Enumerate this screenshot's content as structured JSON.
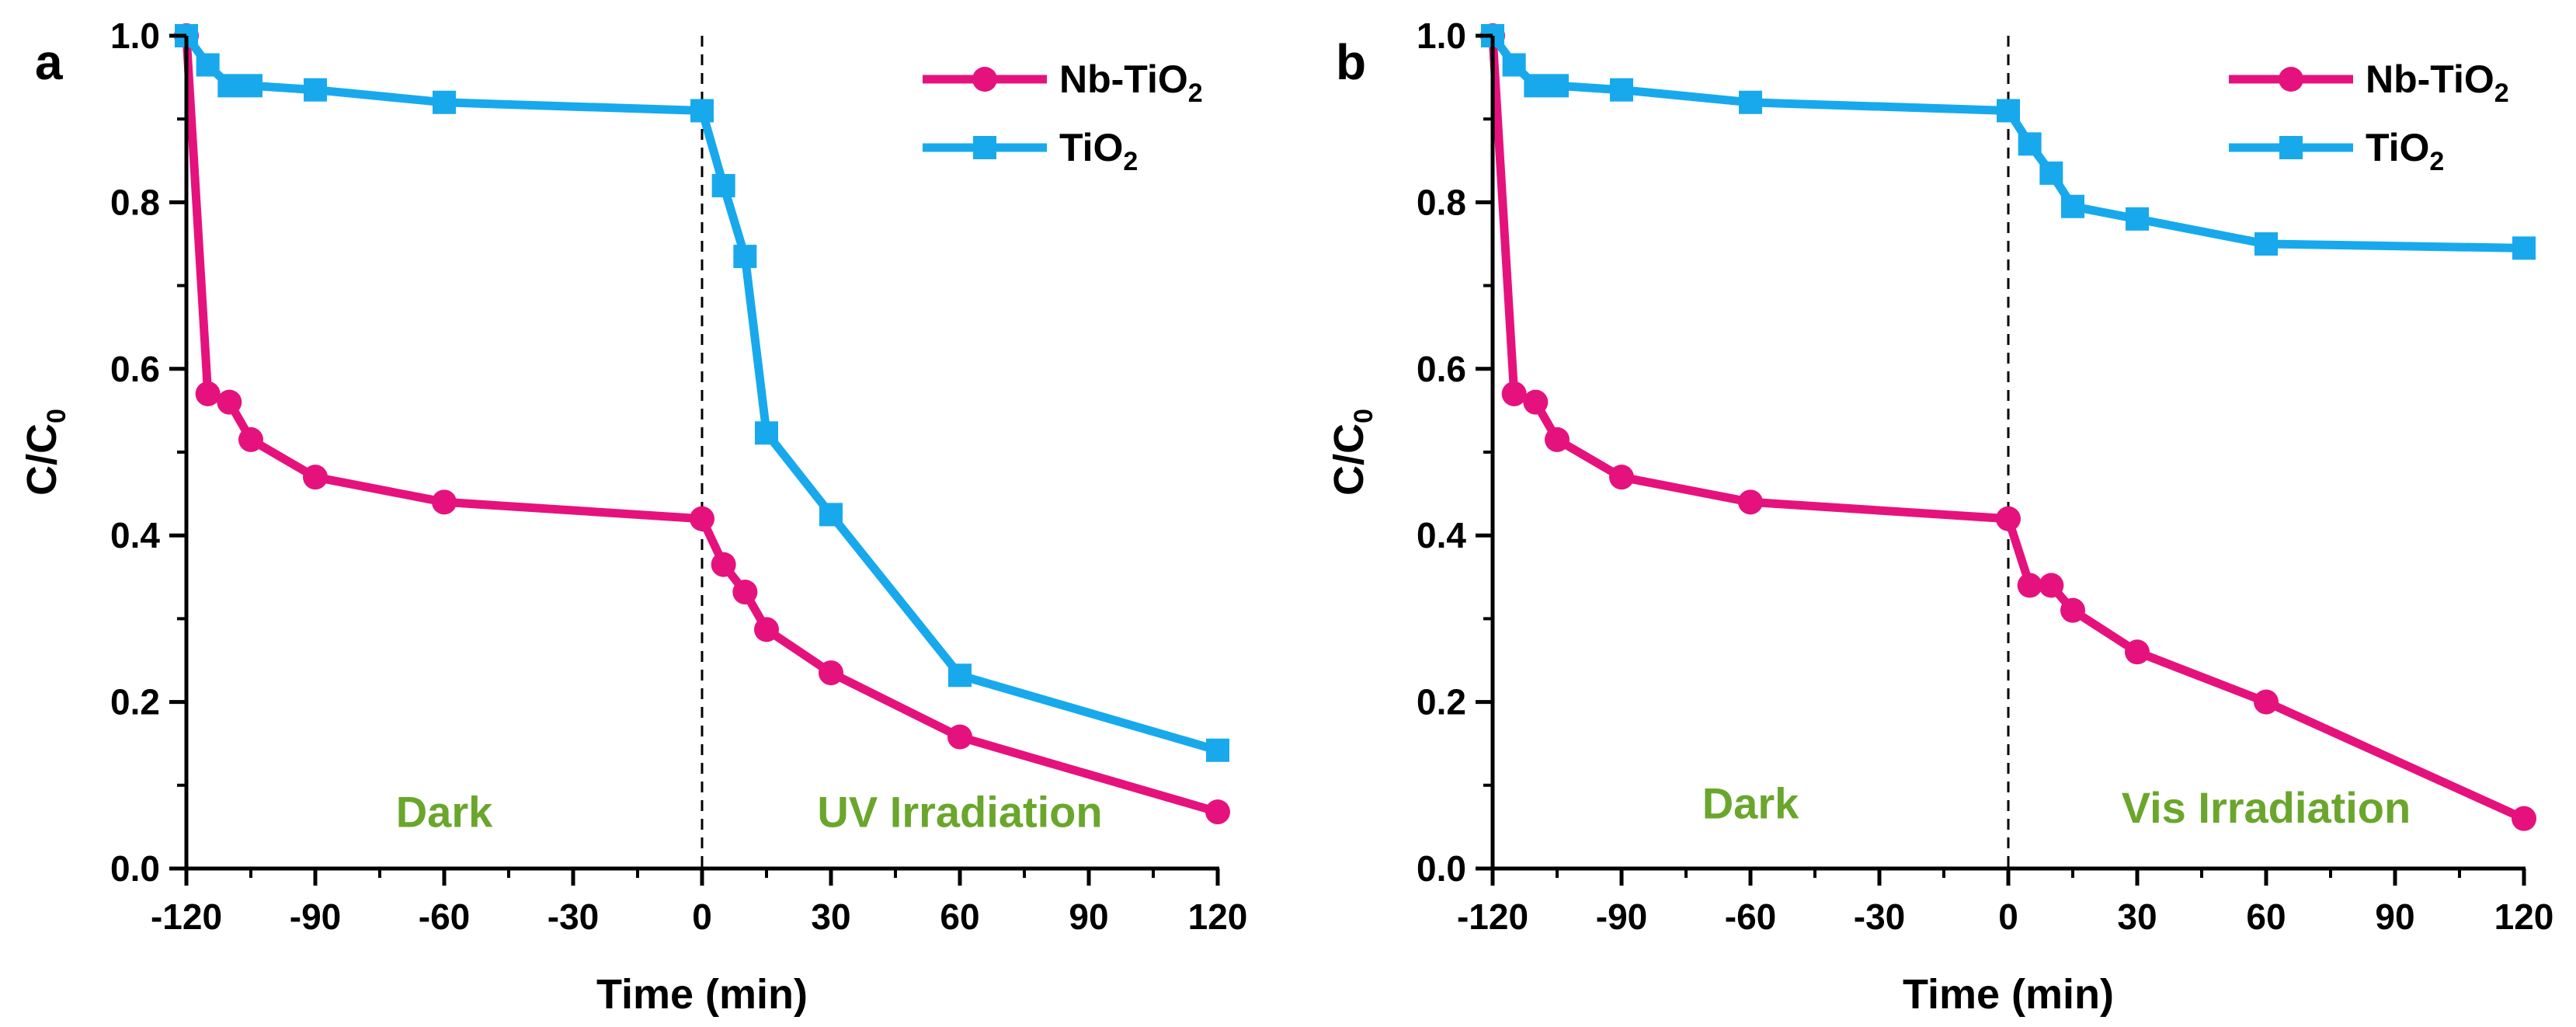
{
  "chart_data": [
    {
      "panel": "a",
      "type": "line",
      "xlabel": "Time (min)",
      "ylabel": "C/C0",
      "xlim": [
        -120,
        120
      ],
      "ylim": [
        0,
        1
      ],
      "xticks": [
        -120,
        -90,
        -60,
        -30,
        0,
        30,
        60,
        90,
        120
      ],
      "yticks": [
        0,
        0.2,
        0.4,
        0.6,
        0.8,
        1.0
      ],
      "xtick_labels": [
        "-120",
        "-90",
        "-60",
        "-30",
        "0",
        "30",
        "60",
        "90",
        "120"
      ],
      "ytick_labels": [
        "0.0",
        "0.2",
        "0.4",
        "0.6",
        "0.8",
        "1.0"
      ],
      "divider_x": 0,
      "regions": [
        {
          "label": "Dark",
          "x": -60,
          "y": 0.05
        },
        {
          "label": "UV Irradiation",
          "x": 60,
          "y": 0.05
        }
      ],
      "legend": "top-right",
      "series": [
        {
          "name": "Nb-TiO2",
          "color": "#e5127d",
          "marker": "circle",
          "x": [
            -120,
            -115,
            -110,
            -105,
            -90,
            -60,
            0,
            5,
            10,
            15,
            30,
            60,
            120
          ],
          "y": [
            1.0,
            0.57,
            0.56,
            0.515,
            0.47,
            0.44,
            0.42,
            0.365,
            0.332,
            0.287,
            0.235,
            0.158,
            0.068
          ]
        },
        {
          "name": "TiO2",
          "color": "#18a9ec",
          "marker": "square",
          "x": [
            -120,
            -115,
            -110,
            -105,
            -90,
            -60,
            0,
            5,
            10,
            15,
            30,
            60,
            120
          ],
          "y": [
            1.0,
            0.965,
            0.94,
            0.94,
            0.935,
            0.92,
            0.91,
            0.82,
            0.735,
            0.523,
            0.425,
            0.232,
            0.142
          ]
        }
      ]
    },
    {
      "panel": "b",
      "type": "line",
      "xlabel": "Time (min)",
      "ylabel": "C/C0",
      "xlim": [
        -120,
        120
      ],
      "ylim": [
        0,
        1
      ],
      "xticks": [
        -120,
        -90,
        -60,
        -30,
        0,
        30,
        60,
        90,
        120
      ],
      "yticks": [
        0,
        0.2,
        0.4,
        0.6,
        0.8,
        1.0
      ],
      "xtick_labels": [
        "-120",
        "-90",
        "-60",
        "-30",
        "0",
        "30",
        "60",
        "90",
        "120"
      ],
      "ytick_labels": [
        "0.0",
        "0.2",
        "0.4",
        "0.6",
        "0.8",
        "1.0"
      ],
      "divider_x": 0,
      "regions": [
        {
          "label": "Dark",
          "x": -60,
          "y": 0.06
        },
        {
          "label": "Vis Irradiation",
          "x": 60,
          "y": 0.055
        }
      ],
      "legend": "top-right",
      "series": [
        {
          "name": "Nb-TiO2",
          "color": "#e5127d",
          "marker": "circle",
          "x": [
            -120,
            -115,
            -110,
            -105,
            -90,
            -60,
            0,
            5,
            10,
            15,
            30,
            60,
            120
          ],
          "y": [
            1.0,
            0.57,
            0.56,
            0.515,
            0.47,
            0.44,
            0.42,
            0.34,
            0.34,
            0.31,
            0.26,
            0.2,
            0.06
          ]
        },
        {
          "name": "TiO2",
          "color": "#18a9ec",
          "marker": "square",
          "x": [
            -120,
            -115,
            -110,
            -105,
            -90,
            -60,
            0,
            5,
            10,
            15,
            30,
            60,
            120
          ],
          "y": [
            1.0,
            0.965,
            0.94,
            0.94,
            0.935,
            0.92,
            0.91,
            0.87,
            0.835,
            0.795,
            0.78,
            0.75,
            0.745
          ]
        }
      ]
    }
  ]
}
